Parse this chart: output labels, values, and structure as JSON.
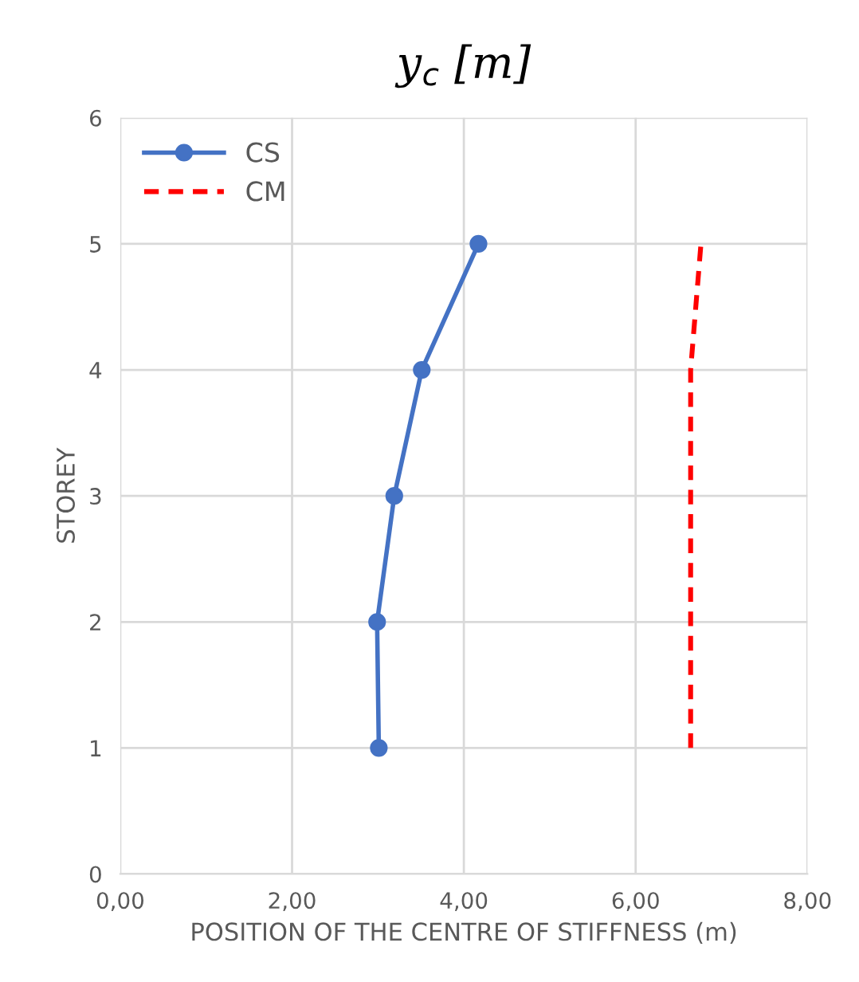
{
  "chart_data": {
    "type": "line",
    "title": "y$_{c}$ [m]",
    "xlabel": "POSITION OF THE CENTRE OF STIFFNESS (m)",
    "ylabel": "STOREY",
    "series": [
      {
        "name": "CS",
        "color": "#4472c4",
        "x": [
          3.01,
          2.99,
          3.19,
          3.51,
          4.17
        ],
        "values": [
          1,
          2,
          3,
          4,
          5
        ],
        "marker": "circle",
        "line_style": "solid"
      },
      {
        "name": "CM",
        "color": "#ff0000",
        "x": [
          6.64,
          6.64,
          6.64,
          6.64,
          6.76
        ],
        "values": [
          1,
          2,
          3,
          4,
          5
        ],
        "marker": "none",
        "line_style": "dashed"
      }
    ],
    "xlim": [
      0,
      8
    ],
    "xticks": [
      {
        "value": 0,
        "label": "0,00"
      },
      {
        "value": 2,
        "label": "2,00"
      },
      {
        "value": 4,
        "label": "4,00"
      },
      {
        "value": 6,
        "label": "6,00"
      },
      {
        "value": 8,
        "label": "8,00"
      }
    ],
    "ylim": [
      0,
      6
    ],
    "yticks": [
      0,
      1,
      2,
      3,
      4,
      5,
      6
    ],
    "grid": true,
    "legend": "top left"
  }
}
